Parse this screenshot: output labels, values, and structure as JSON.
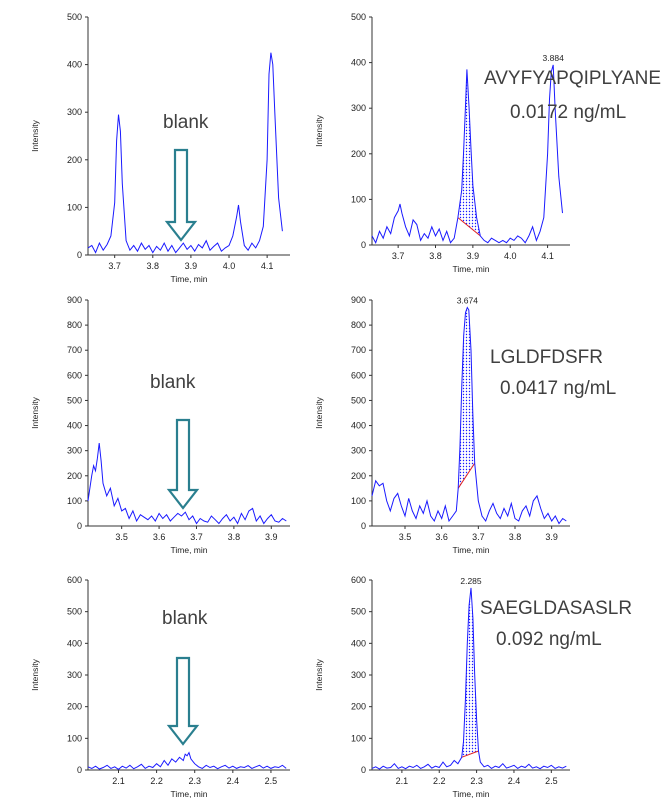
{
  "chart_data": [
    {
      "type": "line",
      "panel": "r1c1",
      "xlabel": "Time, min",
      "ylabel": "Intensity",
      "xlim": [
        3.63,
        4.16
      ],
      "ylim": [
        0,
        500
      ],
      "xticks": [
        "3.7",
        "3.8",
        "3.9",
        "4.0",
        "4.1"
      ],
      "xtickvals": [
        3.7,
        3.8,
        3.9,
        4.0,
        4.1
      ],
      "yticks": [
        "0",
        "100",
        "200",
        "300",
        "400",
        "500"
      ],
      "ytickvals": [
        0,
        100,
        200,
        300,
        400,
        500
      ],
      "series": [
        {
          "x": [
            3.63,
            3.64,
            3.65,
            3.66,
            3.67,
            3.68,
            3.69,
            3.7,
            3.705,
            3.71,
            3.715,
            3.72,
            3.73,
            3.74,
            3.75,
            3.76,
            3.77,
            3.78,
            3.79,
            3.8,
            3.81,
            3.82,
            3.83,
            3.84,
            3.85,
            3.86,
            3.87,
            3.88,
            3.89,
            3.9,
            3.91,
            3.92,
            3.93,
            3.94,
            3.95,
            3.96,
            3.97,
            3.98,
            3.99,
            4.0,
            4.01,
            4.02,
            4.025,
            4.03,
            4.04,
            4.05,
            4.06,
            4.07,
            4.08,
            4.09,
            4.1,
            4.105,
            4.11,
            4.115,
            4.12,
            4.13,
            4.14
          ],
          "y": [
            15,
            20,
            5,
            25,
            10,
            22,
            40,
            110,
            240,
            295,
            260,
            150,
            30,
            10,
            20,
            8,
            25,
            12,
            20,
            5,
            18,
            10,
            25,
            8,
            20,
            5,
            15,
            25,
            12,
            20,
            8,
            22,
            15,
            30,
            10,
            18,
            25,
            8,
            15,
            20,
            40,
            80,
            105,
            70,
            20,
            10,
            25,
            15,
            30,
            60,
            200,
            380,
            425,
            400,
            300,
            120,
            50
          ]
        }
      ],
      "shade": null,
      "peak_label": "",
      "annotation": [
        "blank"
      ],
      "arrow": true
    },
    {
      "type": "line",
      "panel": "r1c2",
      "xlabel": "Time, min",
      "ylabel": "Intensity",
      "xlim": [
        3.63,
        4.16
      ],
      "ylim": [
        0,
        500
      ],
      "xticks": [
        "3.7",
        "3.8",
        "3.9",
        "4.0",
        "4.1"
      ],
      "xtickvals": [
        3.7,
        3.8,
        3.9,
        4.0,
        4.1
      ],
      "yticks": [
        "0",
        "100",
        "200",
        "300",
        "400",
        "500"
      ],
      "ytickvals": [
        0,
        100,
        200,
        300,
        400,
        500
      ],
      "series": [
        {
          "x": [
            3.63,
            3.64,
            3.65,
            3.66,
            3.67,
            3.68,
            3.69,
            3.7,
            3.705,
            3.71,
            3.72,
            3.73,
            3.74,
            3.75,
            3.76,
            3.77,
            3.78,
            3.79,
            3.8,
            3.81,
            3.82,
            3.83,
            3.84,
            3.85,
            3.86,
            3.87,
            3.875,
            3.88,
            3.884,
            3.89,
            3.895,
            3.9,
            3.91,
            3.92,
            3.93,
            3.94,
            3.95,
            3.96,
            3.97,
            3.98,
            3.99,
            4.0,
            4.01,
            4.02,
            4.03,
            4.04,
            4.05,
            4.06,
            4.07,
            4.08,
            4.09,
            4.1,
            4.105,
            4.11,
            4.115,
            4.12,
            4.13,
            4.14
          ],
          "y": [
            20,
            5,
            30,
            15,
            40,
            25,
            60,
            75,
            90,
            70,
            40,
            20,
            55,
            45,
            10,
            25,
            15,
            40,
            20,
            35,
            10,
            30,
            5,
            15,
            60,
            120,
            200,
            300,
            385,
            300,
            210,
            130,
            60,
            20,
            10,
            5,
            15,
            10,
            5,
            10,
            5,
            15,
            10,
            20,
            15,
            5,
            20,
            40,
            10,
            30,
            60,
            200,
            320,
            380,
            395,
            300,
            150,
            70
          ]
        }
      ],
      "shade": [
        3.855,
        3.92
      ],
      "peak_label": "3.884",
      "annotation": [
        "AVYFYAPQIPLYANE",
        "0.0172 ng/mL"
      ],
      "arrow": false
    },
    {
      "type": "line",
      "panel": "r2c1",
      "xlabel": "Time, min",
      "ylabel": "Intensity",
      "xlim": [
        3.41,
        3.95
      ],
      "ylim": [
        0,
        900
      ],
      "xticks": [
        "3.5",
        "3.6",
        "3.7",
        "3.8",
        "3.9"
      ],
      "xtickvals": [
        3.5,
        3.6,
        3.7,
        3.8,
        3.9
      ],
      "yticks": [
        "0",
        "100",
        "200",
        "300",
        "400",
        "500",
        "600",
        "700",
        "800",
        "900"
      ],
      "ytickvals": [
        0,
        100,
        200,
        300,
        400,
        500,
        600,
        700,
        800,
        900
      ],
      "series": [
        {
          "x": [
            3.41,
            3.42,
            3.425,
            3.43,
            3.435,
            3.44,
            3.445,
            3.45,
            3.46,
            3.47,
            3.48,
            3.49,
            3.5,
            3.51,
            3.52,
            3.53,
            3.54,
            3.55,
            3.56,
            3.57,
            3.58,
            3.59,
            3.6,
            3.61,
            3.62,
            3.63,
            3.64,
            3.65,
            3.66,
            3.67,
            3.68,
            3.69,
            3.7,
            3.71,
            3.72,
            3.73,
            3.74,
            3.75,
            3.76,
            3.77,
            3.78,
            3.79,
            3.8,
            3.81,
            3.82,
            3.83,
            3.84,
            3.85,
            3.86,
            3.87,
            3.88,
            3.89,
            3.9,
            3.91,
            3.92,
            3.93,
            3.94
          ],
          "y": [
            100,
            200,
            240,
            220,
            270,
            330,
            260,
            170,
            120,
            150,
            80,
            110,
            60,
            70,
            30,
            60,
            20,
            45,
            35,
            25,
            40,
            20,
            50,
            30,
            45,
            20,
            35,
            50,
            40,
            55,
            25,
            40,
            10,
            30,
            20,
            15,
            40,
            25,
            10,
            30,
            45,
            20,
            35,
            10,
            50,
            25,
            60,
            70,
            20,
            40,
            10,
            30,
            45,
            20,
            15,
            30,
            20
          ]
        }
      ],
      "shade": null,
      "peak_label": "",
      "annotation": [
        "blank"
      ],
      "arrow": true
    },
    {
      "type": "line",
      "panel": "r2c2",
      "xlabel": "Time, min",
      "ylabel": "Intensity",
      "xlim": [
        3.41,
        3.95
      ],
      "ylim": [
        0,
        900
      ],
      "xticks": [
        "3.5",
        "3.6",
        "3.7",
        "3.8",
        "3.9"
      ],
      "xtickvals": [
        3.5,
        3.6,
        3.7,
        3.8,
        3.9
      ],
      "yticks": [
        "0",
        "100",
        "200",
        "300",
        "400",
        "500",
        "600",
        "700",
        "800",
        "900"
      ],
      "ytickvals": [
        0,
        100,
        200,
        300,
        400,
        500,
        600,
        700,
        800,
        900
      ],
      "series": [
        {
          "x": [
            3.41,
            3.42,
            3.43,
            3.44,
            3.45,
            3.46,
            3.47,
            3.48,
            3.49,
            3.5,
            3.51,
            3.52,
            3.53,
            3.54,
            3.55,
            3.56,
            3.57,
            3.58,
            3.59,
            3.6,
            3.61,
            3.62,
            3.63,
            3.64,
            3.645,
            3.65,
            3.655,
            3.66,
            3.665,
            3.67,
            3.674,
            3.68,
            3.685,
            3.69,
            3.7,
            3.71,
            3.72,
            3.73,
            3.74,
            3.75,
            3.76,
            3.77,
            3.78,
            3.79,
            3.8,
            3.81,
            3.82,
            3.83,
            3.84,
            3.85,
            3.86,
            3.87,
            3.88,
            3.89,
            3.9,
            3.91,
            3.92,
            3.93,
            3.94
          ],
          "y": [
            120,
            180,
            160,
            170,
            100,
            60,
            110,
            130,
            80,
            40,
            110,
            60,
            30,
            80,
            50,
            100,
            40,
            20,
            60,
            30,
            80,
            20,
            40,
            60,
            150,
            320,
            560,
            760,
            850,
            870,
            860,
            700,
            450,
            250,
            100,
            40,
            20,
            60,
            90,
            50,
            30,
            70,
            40,
            90,
            30,
            20,
            60,
            80,
            40,
            100,
            120,
            70,
            30,
            50,
            20,
            40,
            10,
            30,
            20
          ]
        }
      ],
      "shade": [
        3.645,
        3.69
      ],
      "peak_label": "3.674",
      "annotation": [
        "LGLDFDSFR",
        "0.0417 ng/mL"
      ],
      "arrow": false
    },
    {
      "type": "line",
      "panel": "r3c1",
      "xlabel": "Time, min",
      "ylabel": "Intensity",
      "xlim": [
        2.02,
        2.55
      ],
      "ylim": [
        0,
        600
      ],
      "xticks": [
        "2.1",
        "2.2",
        "2.3",
        "2.4",
        "2.5"
      ],
      "xtickvals": [
        2.1,
        2.2,
        2.3,
        2.4,
        2.5
      ],
      "yticks": [
        "0",
        "100",
        "200",
        "300",
        "400",
        "500",
        "600"
      ],
      "ytickvals": [
        0,
        100,
        200,
        300,
        400,
        500,
        600
      ],
      "series": [
        {
          "x": [
            2.02,
            2.03,
            2.04,
            2.05,
            2.06,
            2.07,
            2.08,
            2.09,
            2.1,
            2.11,
            2.12,
            2.13,
            2.14,
            2.15,
            2.16,
            2.17,
            2.18,
            2.19,
            2.2,
            2.21,
            2.22,
            2.23,
            2.24,
            2.25,
            2.26,
            2.27,
            2.275,
            2.28,
            2.285,
            2.29,
            2.3,
            2.31,
            2.32,
            2.33,
            2.34,
            2.35,
            2.36,
            2.37,
            2.38,
            2.39,
            2.4,
            2.41,
            2.42,
            2.43,
            2.44,
            2.45,
            2.46,
            2.47,
            2.48,
            2.49,
            2.5,
            2.51,
            2.52,
            2.53,
            2.54
          ],
          "y": [
            10,
            5,
            12,
            3,
            8,
            15,
            5,
            10,
            2,
            12,
            6,
            15,
            4,
            10,
            18,
            5,
            12,
            8,
            20,
            10,
            30,
            15,
            35,
            25,
            40,
            30,
            50,
            45,
            55,
            35,
            20,
            10,
            5,
            15,
            8,
            12,
            4,
            10,
            15,
            6,
            12,
            5,
            10,
            8,
            14,
            5,
            10,
            15,
            6,
            12,
            5,
            10,
            8,
            15,
            5
          ]
        }
      ],
      "shade": null,
      "peak_label": "",
      "annotation": [
        "blank"
      ],
      "arrow": true
    },
    {
      "type": "line",
      "panel": "r3c2",
      "xlabel": "Time, min",
      "ylabel": "Intensity",
      "xlim": [
        2.02,
        2.55
      ],
      "ylim": [
        0,
        600
      ],
      "xticks": [
        "2.1",
        "2.2",
        "2.3",
        "2.4",
        "2.5"
      ],
      "xtickvals": [
        2.1,
        2.2,
        2.3,
        2.4,
        2.5
      ],
      "yticks": [
        "0",
        "100",
        "200",
        "300",
        "400",
        "500",
        "600"
      ],
      "ytickvals": [
        0,
        100,
        200,
        300,
        400,
        500,
        600
      ],
      "series": [
        {
          "x": [
            2.02,
            2.03,
            2.04,
            2.05,
            2.06,
            2.07,
            2.08,
            2.09,
            2.1,
            2.11,
            2.12,
            2.13,
            2.14,
            2.15,
            2.16,
            2.17,
            2.18,
            2.19,
            2.2,
            2.21,
            2.22,
            2.23,
            2.24,
            2.25,
            2.26,
            2.265,
            2.27,
            2.275,
            2.28,
            2.285,
            2.29,
            2.295,
            2.3,
            2.305,
            2.31,
            2.32,
            2.33,
            2.34,
            2.35,
            2.36,
            2.37,
            2.38,
            2.39,
            2.4,
            2.41,
            2.42,
            2.43,
            2.44,
            2.45,
            2.46,
            2.47,
            2.48,
            2.49,
            2.5,
            2.51,
            2.52,
            2.53,
            2.54
          ],
          "y": [
            5,
            10,
            3,
            12,
            6,
            8,
            20,
            5,
            10,
            4,
            12,
            8,
            15,
            5,
            10,
            18,
            6,
            12,
            8,
            25,
            10,
            15,
            30,
            20,
            40,
            90,
            220,
            400,
            520,
            575,
            480,
            300,
            160,
            60,
            25,
            10,
            15,
            5,
            12,
            8,
            20,
            6,
            10,
            15,
            5,
            12,
            8,
            18,
            6,
            10,
            4,
            12,
            8,
            15,
            5,
            10,
            6,
            12
          ]
        }
      ],
      "shade": [
        2.255,
        2.305
      ],
      "peak_label": "2.285",
      "annotation": [
        "SAEGLDASASLR",
        "0.092 ng/mL"
      ],
      "arrow": false
    }
  ]
}
